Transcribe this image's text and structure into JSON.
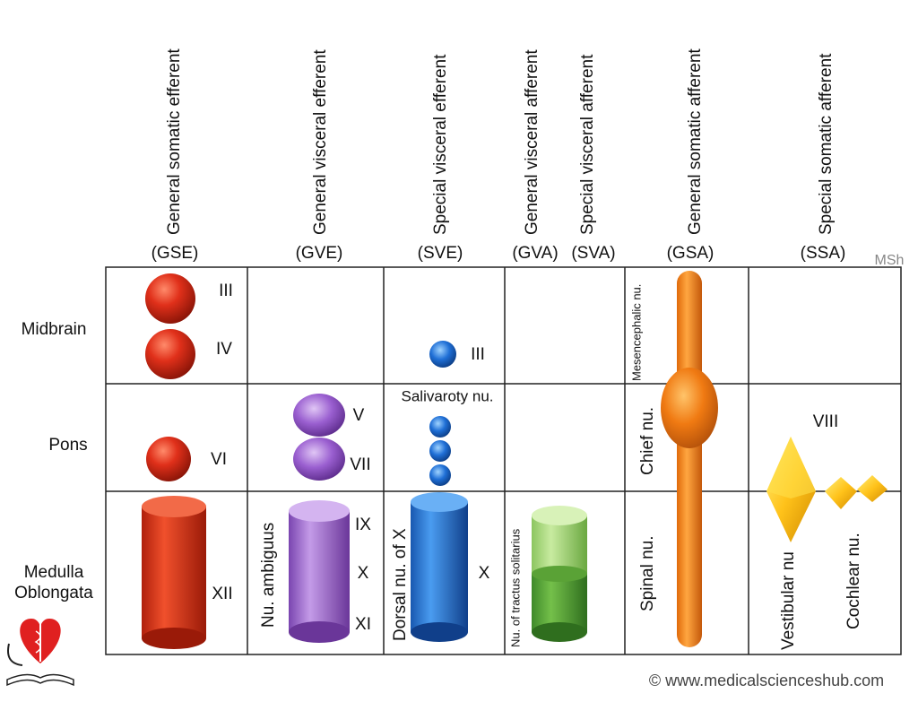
{
  "columns": [
    {
      "name": "General somatic efferent",
      "abbr": "(GSE)"
    },
    {
      "name": "General visceral efferent",
      "abbr": "(GVE)"
    },
    {
      "name": "Special visceral efferent",
      "abbr": "(SVE)"
    },
    {
      "name": "General visceral afferent",
      "abbr": "(GVA)"
    },
    {
      "name": "Special visceral afferent",
      "abbr": "(SVA)"
    },
    {
      "name": "General somatic afferent",
      "abbr": "(GSA)"
    },
    {
      "name": "Special somatic afferent",
      "abbr": "(SSA)"
    }
  ],
  "rows": [
    {
      "lines": [
        "Midbrain"
      ]
    },
    {
      "lines": [
        "Pons"
      ]
    },
    {
      "lines": [
        "Medulla",
        "Oblongata"
      ]
    }
  ],
  "author": "MSh",
  "labels": {
    "gse_midbrain_1": "III",
    "gse_midbrain_2": "IV",
    "gse_pons": "VI",
    "gse_medulla": "XII",
    "gve_pons_1": "V",
    "gve_pons_2": "VII",
    "gve_medulla_name": "Nu. ambiguus",
    "gve_medulla_1": "IX",
    "gve_medulla_2": "X",
    "gve_medulla_3": "XI",
    "sve_midbrain": "III",
    "sve_pons_name": "Salivaroty nu.",
    "sve_medulla_name": "Dorsal nu. of X",
    "sve_medulla": "X",
    "gva_medulla_name": "Nu. of tractus solitarius",
    "gsa_midbrain_name": "Mesencephalic nu.",
    "gsa_pons_name": "Chief nu.",
    "gsa_medulla_name": "Spinal nu.",
    "ssa_nerve": "VIII",
    "ssa_vestibular": "Vestibular nu",
    "ssa_cochlear": "Cochlear nu."
  },
  "footer": "© www.medicalscienceshub.com"
}
